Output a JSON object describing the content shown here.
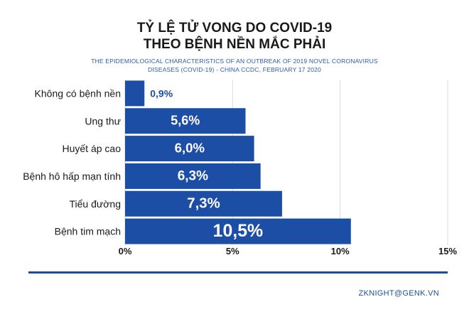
{
  "header": {
    "title_line1": "TỶ LỆ TỬ VONG DO COVID-19",
    "title_line2": "THEO BỆNH NỀN MẮC PHẢI",
    "source_line1": "THE EPIDEMIOLOGICAL CHARACTERISTICS OF AN OUTBREAK OF 2019 NOVEL CORONAVIRUS",
    "source_line2": "DISEASES (COVID-19) - CHINA CCDC, FEBRUARY 17 2020"
  },
  "footer": {
    "credit": "ZKNIGHT@GENK.VN"
  },
  "colors": {
    "bar": "#1d4ea6",
    "label_inside": "#ffffff",
    "label_outside": "#1d4ea6",
    "divider": "#1d4f98"
  },
  "chart_data": {
    "type": "bar",
    "orientation": "horizontal",
    "categories": [
      "Không có bệnh nền",
      "Ung thư",
      "Huyết áp cao",
      "Bệnh hô hấp mạn tính",
      "Tiểu đường",
      "Bệnh tim mạch"
    ],
    "values": [
      0.9,
      5.6,
      6.0,
      6.3,
      7.3,
      10.5
    ],
    "value_labels": [
      "0,9%",
      "5,6%",
      "6,0%",
      "6,3%",
      "7,3%",
      "10,5%"
    ],
    "xlim": [
      0,
      15
    ],
    "x_ticks": [
      0,
      5,
      10,
      15
    ],
    "x_tick_labels": [
      "0%",
      "5%",
      "10%",
      "15%"
    ],
    "grid": true
  }
}
